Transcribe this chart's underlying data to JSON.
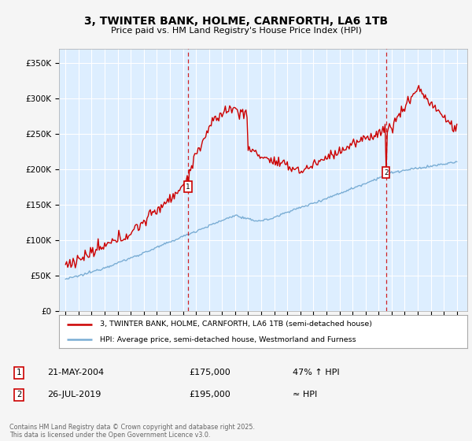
{
  "title": "3, TWINTER BANK, HOLME, CARNFORTH, LA6 1TB",
  "subtitle": "Price paid vs. HM Land Registry's House Price Index (HPI)",
  "ylim": [
    0,
    370000
  ],
  "yticks": [
    0,
    50000,
    100000,
    150000,
    200000,
    250000,
    300000,
    350000
  ],
  "ytick_labels": [
    "£0",
    "£50K",
    "£100K",
    "£150K",
    "£200K",
    "£250K",
    "£300K",
    "£350K"
  ],
  "xlim_start": 1994.5,
  "xlim_end": 2025.8,
  "sale1_date": 2004.38,
  "sale1_price": 175000,
  "sale2_date": 2019.56,
  "sale2_price": 195000,
  "red_line_color": "#cc0000",
  "blue_line_color": "#7aadd4",
  "bg_color": "#ddeeff",
  "grid_color": "#ffffff",
  "legend_label_red": "3, TWINTER BANK, HOLME, CARNFORTH, LA6 1TB (semi-detached house)",
  "legend_label_blue": "HPI: Average price, semi-detached house, Westmorland and Furness",
  "annotation1_date": "21-MAY-2004",
  "annotation1_price": "£175,000",
  "annotation1_hpi": "47% ↑ HPI",
  "annotation2_date": "26-JUL-2019",
  "annotation2_price": "£195,000",
  "annotation2_hpi": "≈ HPI",
  "footer": "Contains HM Land Registry data © Crown copyright and database right 2025.\nThis data is licensed under the Open Government Licence v3.0."
}
